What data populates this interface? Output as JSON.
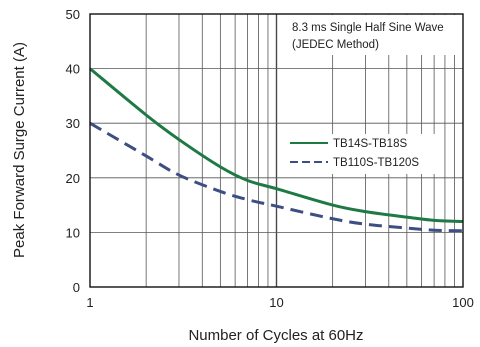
{
  "chart_data": {
    "type": "line",
    "xscale": "log",
    "xlim": [
      1,
      100
    ],
    "ylim": [
      0,
      50
    ],
    "xticks": [
      1,
      10,
      100
    ],
    "yticks": [
      0,
      10,
      20,
      30,
      40,
      50
    ],
    "xlabel": "Number of Cycles at 60Hz",
    "ylabel": "Peak Forward Surge Current (A)",
    "grid": true,
    "annotation": [
      "8.3 ms Single Half Sine Wave",
      "(JEDEC Method)"
    ],
    "legend_position": "right",
    "series": [
      {
        "name": "TB14S-TB18S",
        "color": "#1e7a45",
        "style": "solid",
        "x": [
          1,
          2,
          3,
          5,
          7,
          10,
          20,
          30,
          50,
          70,
          100
        ],
        "y": [
          40,
          31.5,
          27,
          22,
          19.5,
          18,
          15,
          13.8,
          12.8,
          12.2,
          12
        ]
      },
      {
        "name": "TB110S-TB120S",
        "color": "#3d4f82",
        "style": "dashed",
        "x": [
          1,
          2,
          3,
          5,
          7,
          10,
          20,
          30,
          50,
          70,
          100
        ],
        "y": [
          30,
          24,
          20.5,
          17.5,
          16,
          14.8,
          12.5,
          11.5,
          10.8,
          10.4,
          10.3
        ]
      }
    ]
  }
}
